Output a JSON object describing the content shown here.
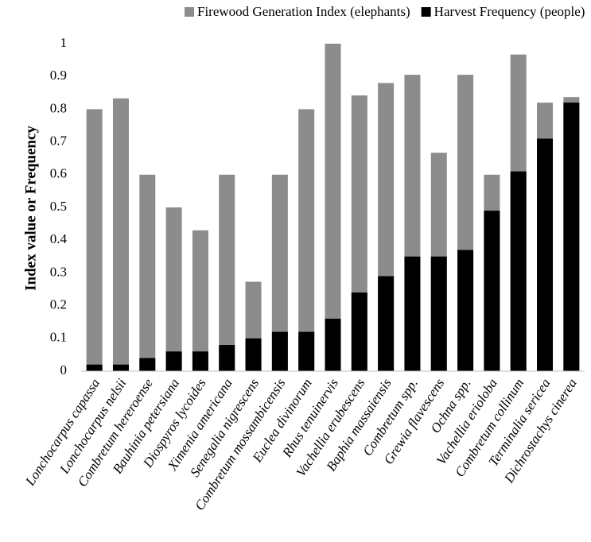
{
  "chart_data": {
    "type": "bar",
    "y_label": "Index value or Frequency",
    "categories": [
      "Lonchocarpus capassa",
      "Lonchocarpus nelsii",
      "Combretum hereroense",
      "Bauhinia petersiana",
      "Diospyros lycoides",
      "Ximenia americana",
      "Senegalia nigrescens",
      "Combretum mossambicensis",
      "Euclea divinorum",
      "Rhus tenuinervis",
      "Vachellia erubescens",
      "Baphia massaiensis",
      "Combretum spp.",
      "Grewia flavescens",
      "Ochna spp.",
      "Vachellia erioloba",
      "Combretum collinum",
      "Terminalia sericea",
      "Dichrostachys cinerea"
    ],
    "series": [
      {
        "name": "Firewood Generation Index (elephants)",
        "color": "#8c8c8c",
        "values": [
          0.8,
          0.833,
          0.6,
          0.5,
          0.43,
          0.6,
          0.273,
          0.6,
          0.8,
          1.0,
          0.842,
          0.88,
          0.905,
          0.667,
          0.905,
          0.6,
          0.967,
          0.82,
          0.837
        ]
      },
      {
        "name": "Harvest Frequency (people)",
        "color": "#000000",
        "values": [
          0.02,
          0.02,
          0.04,
          0.06,
          0.06,
          0.08,
          0.1,
          0.12,
          0.12,
          0.16,
          0.24,
          0.29,
          0.35,
          0.35,
          0.37,
          0.49,
          0.61,
          0.71,
          0.82
        ]
      }
    ],
    "ylim": [
      0,
      1
    ],
    "yticks": [
      0,
      0.1,
      0.2,
      0.3,
      0.4,
      0.5,
      0.6,
      0.7,
      0.8,
      0.9,
      1
    ],
    "grid": false,
    "legend": "top"
  }
}
